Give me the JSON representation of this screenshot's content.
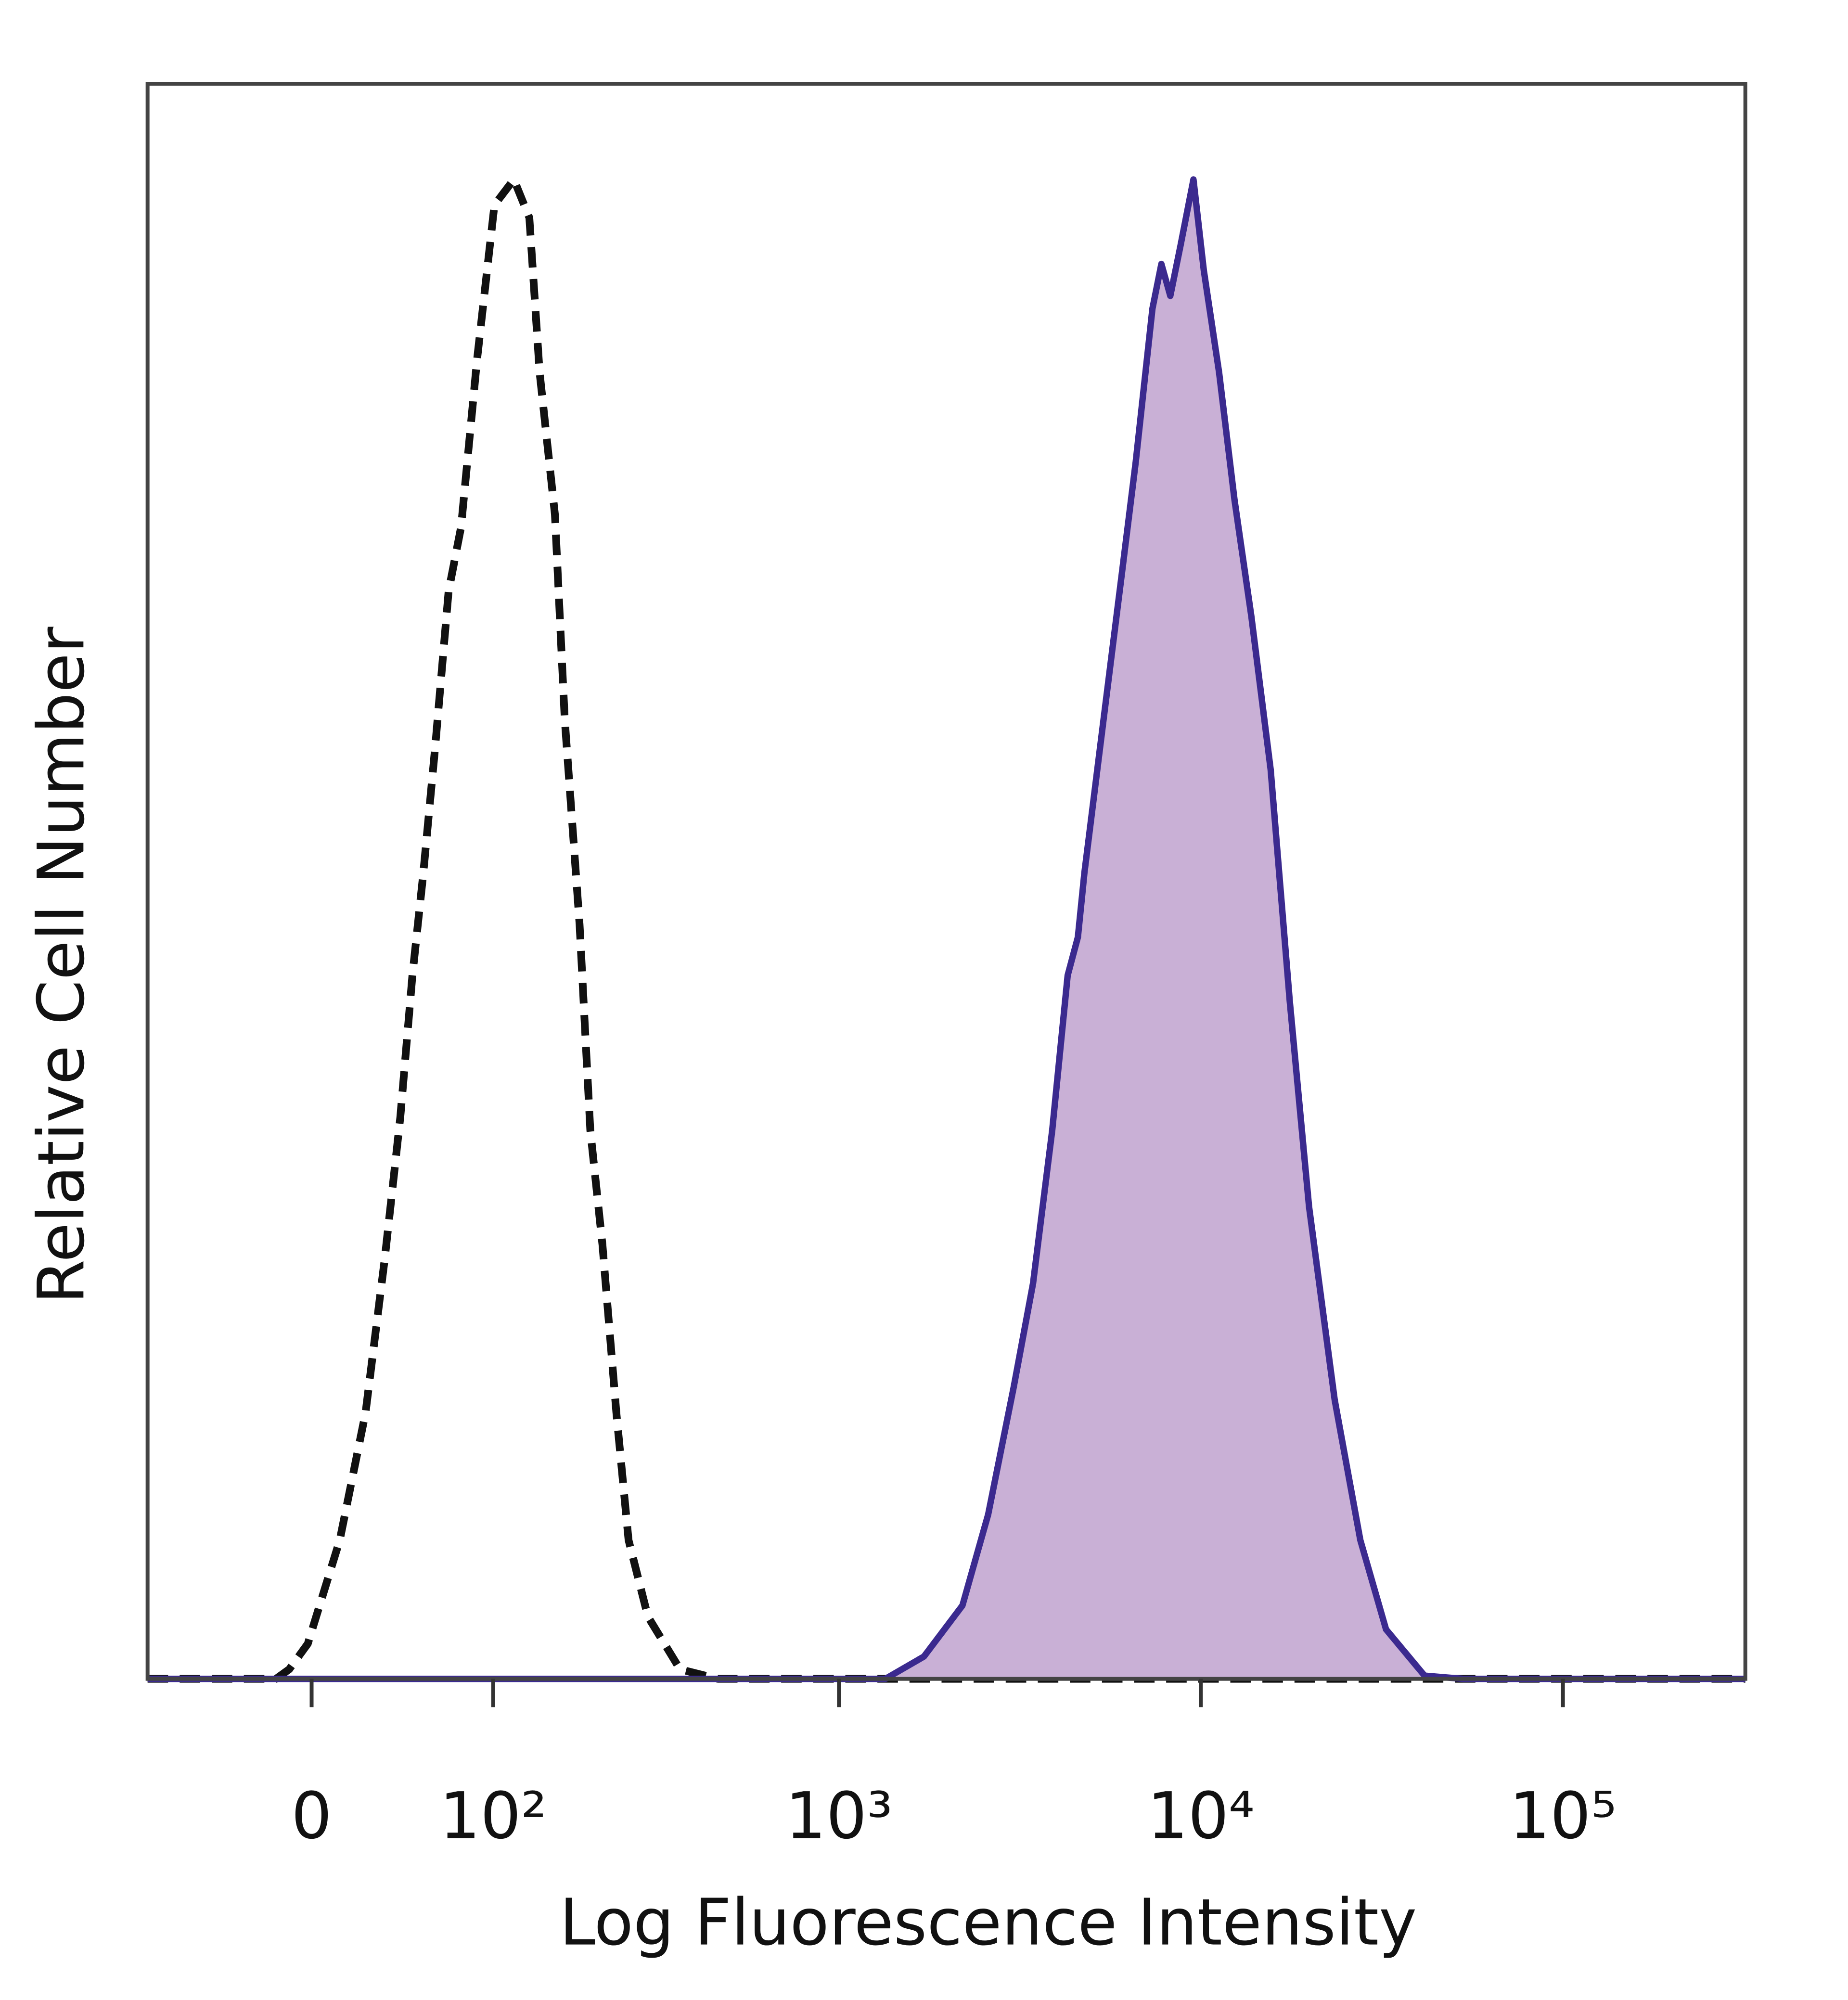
{
  "chart_data": {
    "type": "histogram-overlay",
    "xlabel": "Log Fluorescence Intensity",
    "ylabel": "Relative Cell Number",
    "xscale": "biexponential",
    "xlim": [
      -87,
      319000
    ],
    "ylim": [
      0,
      100
    ],
    "xticks": [
      0,
      {
        "value": 100,
        "label": "10²"
      },
      {
        "value": 1000,
        "label": "10³"
      },
      {
        "value": 10000,
        "label": "10⁴"
      },
      {
        "value": 100000,
        "label": "10⁵"
      }
    ],
    "series": [
      {
        "color": "#111111",
        "style": "dashed",
        "fill": null,
        "x": [
          -87,
          -16,
          -10,
          -1.7,
          12.6,
          24.5,
          33.8,
          41.6,
          48,
          54,
          61,
          69,
          77,
          88,
          101,
          117,
          131,
          141,
          157,
          168,
          186,
          200,
          217,
          238,
          258,
          293,
          361,
          461,
          319000
        ],
        "values": [
          0,
          0,
          0.6,
          2.2,
          8.7,
          16.7,
          26.4,
          35.2,
          44.1,
          50.5,
          58.6,
          68.2,
          72.2,
          82.7,
          92.4,
          94,
          91.6,
          81.9,
          73,
          60.2,
          47.3,
          34.4,
          27.2,
          16.7,
          8.7,
          3.9,
          0.6,
          0,
          0
        ]
      },
      {
        "color": "#3b2a8f",
        "style": "solid",
        "fill": "#c9b0d6",
        "x": [
          -87,
          1344,
          1718,
          2195,
          2585,
          3042,
          3440,
          3886,
          4287,
          4575,
          4767,
          5390,
          6090,
          6610,
          7350,
          7780,
          8235,
          8795,
          9540,
          10190,
          11230,
          12390,
          13790,
          15590,
          17600,
          19900,
          23420,
          27570,
          32470,
          41480,
          52990,
          319000
        ],
        "values": [
          0,
          0,
          1.4,
          4.6,
          10.3,
          18.3,
          24.8,
          34.4,
          44.1,
          46.5,
          50.5,
          60.2,
          69.8,
          76.3,
          85.9,
          88.7,
          86.7,
          89.9,
          94,
          88.3,
          81.9,
          73.9,
          66.6,
          57,
          42.5,
          29.6,
          17.5,
          8.7,
          3.1,
          0.2,
          0,
          0
        ]
      }
    ]
  }
}
